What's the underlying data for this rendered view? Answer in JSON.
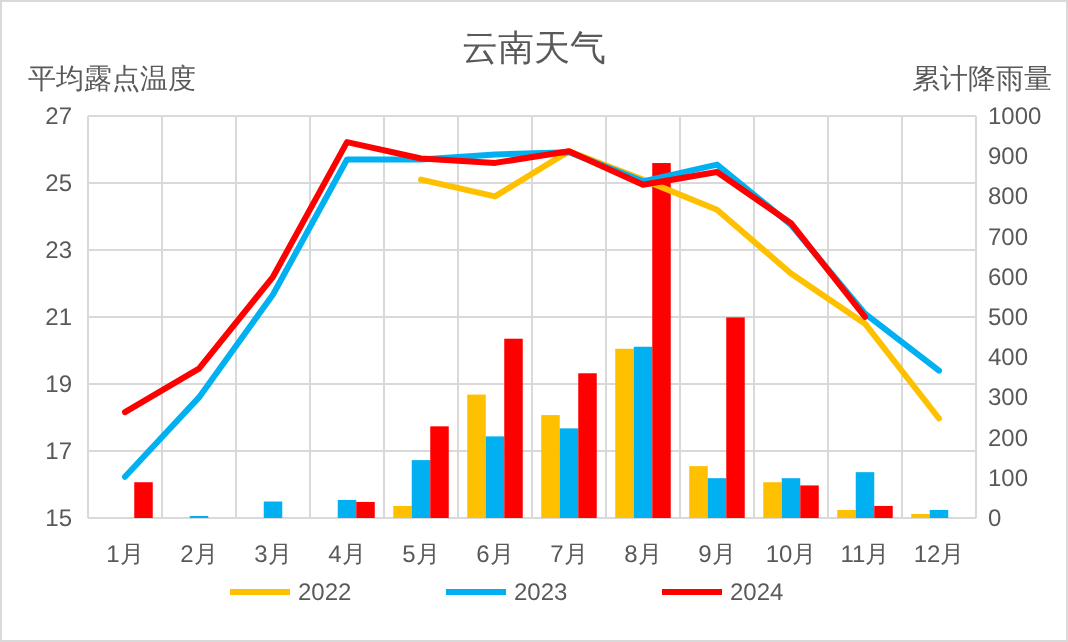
{
  "chart_data": {
    "type": "line",
    "title": "云南天气",
    "ylabel": "平均露点温度",
    "y2label": "累计降雨量",
    "categories": [
      "1月",
      "2月",
      "3月",
      "4月",
      "5月",
      "6月",
      "7月",
      "8月",
      "9月",
      "10月",
      "11月",
      "12月"
    ],
    "ylim": [
      15,
      27
    ],
    "yticks": [
      15,
      17,
      19,
      21,
      23,
      25,
      27
    ],
    "y2lim": [
      0,
      1000
    ],
    "y2ticks": [
      0,
      100,
      200,
      300,
      400,
      500,
      600,
      700,
      800,
      900,
      1000
    ],
    "grid": true,
    "legend": "bottom",
    "series": [
      {
        "type": "bar",
        "axis": "y2",
        "color": "#ffc000",
        "values": [
          null,
          null,
          null,
          null,
          30,
          307,
          256,
          421,
          129,
          89,
          20,
          10
        ]
      },
      {
        "type": "bar",
        "axis": "y2",
        "color": "#00b0f0",
        "values": [
          null,
          5,
          41,
          45,
          144,
          203,
          223,
          426,
          99,
          99,
          114,
          20
        ]
      },
      {
        "type": "bar",
        "axis": "y2",
        "color": "#ff0000",
        "values": [
          89,
          null,
          null,
          40,
          228,
          446,
          360,
          883,
          499,
          81,
          30,
          null
        ]
      },
      {
        "axis": "y",
        "name": "2022",
        "color": "#ffc000",
        "values": [
          null,
          null,
          null,
          null,
          25.1,
          24.6,
          25.95,
          25.1,
          24.2,
          22.3,
          20.8,
          17.97
        ]
      },
      {
        "axis": "y",
        "name": "2023",
        "color": "#00b0f0",
        "values": [
          16.23,
          18.6,
          21.67,
          25.7,
          25.7,
          25.85,
          25.92,
          25.05,
          25.55,
          23.75,
          21.1,
          19.4
        ]
      },
      {
        "axis": "y",
        "name": "2024",
        "color": "#ff0000",
        "values": [
          18.16,
          19.46,
          22.2,
          26.22,
          25.73,
          25.6,
          25.95,
          24.95,
          25.33,
          23.8,
          21.0,
          null
        ]
      }
    ]
  }
}
